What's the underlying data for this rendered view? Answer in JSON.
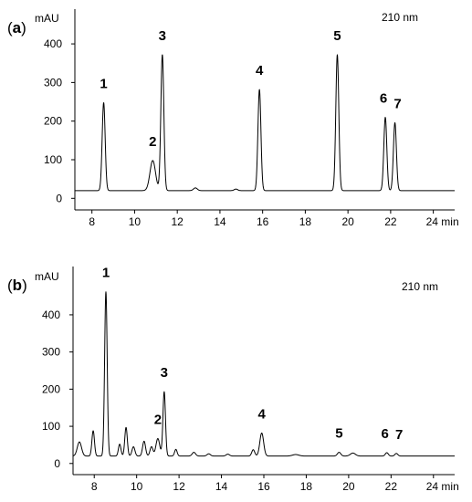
{
  "chart_data": [
    {
      "type": "line",
      "panel_label": "a",
      "ylabel": "mAU",
      "wavelength_label": "210 nm",
      "x_unit": "min",
      "xlim": [
        7.2,
        25.0
      ],
      "ylim": [
        -30,
        490
      ],
      "x_ticks": [
        8,
        10,
        12,
        14,
        16,
        18,
        20,
        22,
        24
      ],
      "y_ticks": [
        0,
        100,
        200,
        300,
        400
      ],
      "baseline": 20,
      "peaks": [
        {
          "label": "1",
          "x": 8.55,
          "height": 248,
          "width": 0.07
        },
        {
          "label": "2",
          "x": 10.85,
          "height": 98,
          "width": 0.13
        },
        {
          "label": "3",
          "x": 11.3,
          "height": 372,
          "width": 0.07
        },
        {
          "label": "",
          "x": 12.85,
          "height": 27,
          "width": 0.09
        },
        {
          "label": "",
          "x": 14.75,
          "height": 24,
          "width": 0.08
        },
        {
          "label": "4",
          "x": 15.85,
          "height": 282,
          "width": 0.07
        },
        {
          "label": "5",
          "x": 19.5,
          "height": 372,
          "width": 0.07
        },
        {
          "label": "6",
          "x": 21.75,
          "height": 210,
          "width": 0.07
        },
        {
          "label": "7",
          "x": 22.2,
          "height": 196,
          "width": 0.07
        }
      ]
    },
    {
      "type": "line",
      "panel_label": "b",
      "ylabel": "mAU",
      "wavelength_label": "210 nm",
      "x_unit": "min",
      "xlim": [
        7.0,
        25.0
      ],
      "ylim": [
        -30,
        530
      ],
      "x_ticks": [
        8,
        10,
        12,
        14,
        16,
        18,
        20,
        22,
        24
      ],
      "y_ticks": [
        0,
        100,
        200,
        300,
        400
      ],
      "baseline": 20,
      "peaks": [
        {
          "label": "",
          "x": 7.3,
          "height": 58,
          "width": 0.1
        },
        {
          "label": "",
          "x": 7.95,
          "height": 88,
          "width": 0.06
        },
        {
          "label": "1",
          "x": 8.55,
          "height": 462,
          "width": 0.06
        },
        {
          "label": "",
          "x": 9.2,
          "height": 52,
          "width": 0.06
        },
        {
          "label": "",
          "x": 9.5,
          "height": 97,
          "width": 0.06
        },
        {
          "label": "",
          "x": 9.85,
          "height": 45,
          "width": 0.07
        },
        {
          "label": "",
          "x": 10.35,
          "height": 60,
          "width": 0.07
        },
        {
          "label": "",
          "x": 10.7,
          "height": 45,
          "width": 0.07
        },
        {
          "label": "2",
          "x": 11.0,
          "height": 67,
          "width": 0.09
        },
        {
          "label": "3",
          "x": 11.3,
          "height": 193,
          "width": 0.06
        },
        {
          "label": "",
          "x": 11.85,
          "height": 38,
          "width": 0.06
        },
        {
          "label": "",
          "x": 12.7,
          "height": 30,
          "width": 0.08
        },
        {
          "label": "",
          "x": 13.4,
          "height": 26,
          "width": 0.08
        },
        {
          "label": "",
          "x": 14.3,
          "height": 25,
          "width": 0.08
        },
        {
          "label": "",
          "x": 15.5,
          "height": 37,
          "width": 0.07
        },
        {
          "label": "4",
          "x": 15.9,
          "height": 82,
          "width": 0.09
        },
        {
          "label": "",
          "x": 17.5,
          "height": 24,
          "width": 0.15
        },
        {
          "label": "5",
          "x": 19.55,
          "height": 30,
          "width": 0.08
        },
        {
          "label": "",
          "x": 20.2,
          "height": 28,
          "width": 0.12
        },
        {
          "label": "6",
          "x": 21.8,
          "height": 29,
          "width": 0.07
        },
        {
          "label": "7",
          "x": 22.25,
          "height": 27,
          "width": 0.07
        }
      ]
    }
  ]
}
